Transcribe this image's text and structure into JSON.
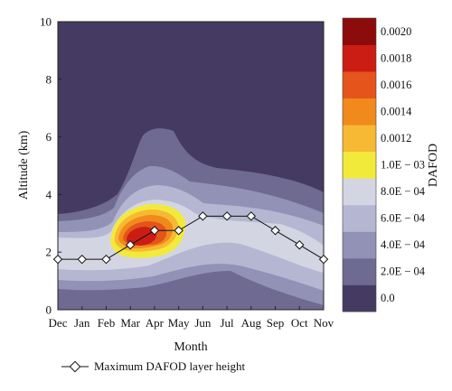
{
  "chart_data": {
    "type": "heatmap",
    "title": "",
    "xlabel": "Month",
    "ylabel": "Altitude (km)",
    "colorbar_label": "DAFOD",
    "x_categories": [
      "Dec",
      "Jan",
      "Feb",
      "Mar",
      "Apr",
      "May",
      "Jun",
      "Jul",
      "Aug",
      "Sep",
      "Oct",
      "Nov"
    ],
    "y_ticks": [
      "0",
      "2",
      "4",
      "6",
      "8",
      "10"
    ],
    "ylim": [
      0,
      10
    ],
    "colorbar_ticks": [
      "0.0",
      "2.0E − 04",
      "4.0E − 04",
      "6.0E − 04",
      "8.0E − 04",
      "1.0E − 03",
      "0.0012",
      "0.0014",
      "0.0016",
      "0.0018",
      "0.0020"
    ],
    "colorbar_levels": [
      0,
      0.0002,
      0.0004,
      0.0006,
      0.0008,
      0.001,
      0.0012,
      0.0014,
      0.0016,
      0.0018,
      0.002
    ],
    "colorbar_colors": [
      "#453b62",
      "#6f6a92",
      "#9291b6",
      "#b5b7d2",
      "#d3d5e2",
      "#f2ea3b",
      "#f7b933",
      "#f08a1c",
      "#e4541b",
      "#cb1d14",
      "#8c0c0c"
    ],
    "series": [
      {
        "name": "Maximum DAFOD layer height",
        "values": [
          1.75,
          1.75,
          1.75,
          2.25,
          2.75,
          2.75,
          3.25,
          3.25,
          3.25,
          2.75,
          2.25,
          1.75
        ]
      }
    ],
    "legend_position": "bottom-left"
  }
}
